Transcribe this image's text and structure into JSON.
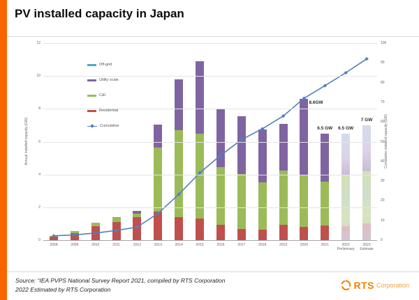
{
  "title": "PV installed capacity in Japan",
  "accent_color": "#fa6400",
  "source": {
    "line1": "Source: “IEA PVPS National Survey Report 2021, compiled by RTS Corporation",
    "line2": "2022 Estimated by RTS Corporation"
  },
  "logo": {
    "name": "RTS",
    "suffix": "Corporation"
  },
  "chart_data": {
    "type": "bar",
    "subtype": "stacked-bar-with-cumulative-line",
    "title": "PV installed capacity in Japan",
    "grid": true,
    "legend_position": "upper-left-inside",
    "categories": [
      {
        "label": "2008"
      },
      {
        "label": "2009"
      },
      {
        "label": "2010"
      },
      {
        "label": "2011"
      },
      {
        "label": "2012"
      },
      {
        "label": "2013"
      },
      {
        "label": "2014"
      },
      {
        "label": "2015"
      },
      {
        "label": "2016"
      },
      {
        "label": "2017"
      },
      {
        "label": "2018"
      },
      {
        "label": "2019"
      },
      {
        "label": "2020"
      },
      {
        "label": "2021"
      },
      {
        "label": "2022",
        "sublabel": "Preliminary",
        "estimated": true
      },
      {
        "label": "2023",
        "sublabel": "Estimate",
        "estimated": true
      }
    ],
    "series": [
      {
        "name": "Residential",
        "color": "#c0504d",
        "values": [
          0.2,
          0.42,
          0.85,
          1.1,
          1.38,
          1.75,
          1.4,
          1.3,
          0.95,
          0.7,
          0.65,
          0.95,
          0.8,
          0.9,
          0.85,
          1.0
        ]
      },
      {
        "name": "C&I",
        "color": "#9bbb59",
        "values": [
          0.05,
          0.13,
          0.2,
          0.25,
          0.22,
          3.9,
          5.3,
          5.2,
          3.5,
          3.35,
          2.85,
          3.3,
          3.15,
          2.65,
          3.1,
          3.2
        ]
      },
      {
        "name": "Utility scale",
        "color": "#8064a2",
        "values": [
          0,
          0,
          0,
          0,
          0.2,
          1.4,
          3.1,
          4.4,
          3.55,
          3.5,
          3.25,
          2.85,
          4.65,
          2.95,
          2.55,
          2.8
        ]
      },
      {
        "name": "Off-grid",
        "color": "#4bacc6",
        "values": [
          0,
          0,
          0.03,
          0.07,
          0,
          0,
          0,
          0,
          0,
          0,
          0,
          0,
          0,
          0,
          0,
          0
        ]
      }
    ],
    "line": {
      "name": "Cumulative",
      "color": "#4f81bd",
      "values": [
        2.2,
        2.7,
        3.6,
        4.9,
        6.6,
        13.6,
        23.3,
        34.2,
        43,
        51,
        56.5,
        63,
        72,
        78.4,
        85,
        92
      ]
    },
    "left_axis": {
      "label": "Annual installed capacity (GW)",
      "min": 0,
      "max": 12,
      "step": 2
    },
    "right_axis": {
      "label": "Cumulative installed capacity (GW)",
      "min": 0,
      "max": 100,
      "step": 10
    },
    "annotations": [
      {
        "category_index": 12,
        "text": "8.6GW",
        "position": "right"
      },
      {
        "category_index": 13,
        "text": "6.5 GW",
        "position": "above"
      },
      {
        "category_index": 14,
        "text": "6.5 GW",
        "position": "above"
      },
      {
        "category_index": 15,
        "text": "7 GW",
        "position": "above"
      }
    ],
    "legend_order": [
      "Off-grid",
      "Utility scale",
      "C&I",
      "Residential",
      "Cumulative"
    ]
  }
}
